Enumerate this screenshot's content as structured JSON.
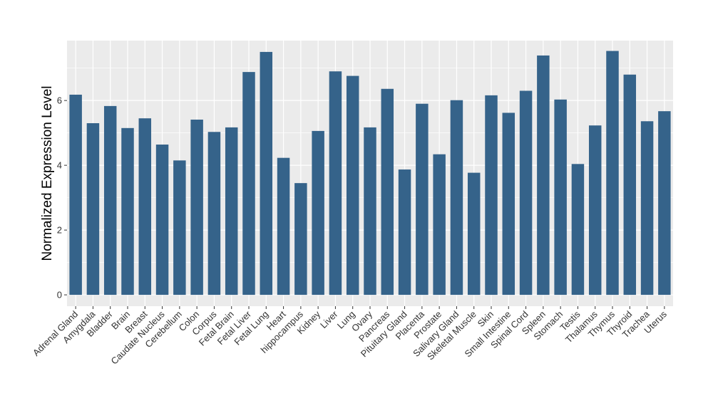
{
  "chart_data": {
    "type": "bar",
    "title": "",
    "xlabel": "",
    "ylabel": "Normalized Expression Level",
    "ylim": [
      -0.35,
      7.85
    ],
    "yticks": [
      0,
      2,
      4,
      6
    ],
    "grid": true,
    "legend": "none",
    "colors": {
      "bar": "#35638a",
      "panel": "#ebebeb",
      "grid": "#ffffff",
      "tick": "#333333"
    },
    "categories": [
      "Adrenal Gland",
      "Amygdala",
      "Bladder",
      "Brain",
      "Breast",
      "Caudate Nucleus",
      "Cerebellum",
      "Colon",
      "Corpus",
      "Fetal Brain",
      "Fetal Liver",
      "Fetal Lung",
      "Heart",
      "hippocampus",
      "Kidney",
      "Liver",
      "Lung",
      "Ovary",
      "Pancreas",
      "Pituitary Gland",
      "Placenta",
      "Prostate",
      "Salivary Gland",
      "Skeletal Muscle",
      "Skin",
      "Small Intestine",
      "Spinal Cord",
      "Spleen",
      "Stomach",
      "Testis",
      "Thalamus",
      "Thymus",
      "Thyroid",
      "Trachea",
      "Uterus"
    ],
    "values": [
      6.18,
      5.3,
      5.83,
      5.15,
      5.45,
      4.64,
      4.15,
      5.41,
      5.03,
      5.17,
      6.88,
      7.5,
      4.23,
      3.45,
      5.06,
      6.9,
      6.76,
      5.17,
      6.36,
      3.87,
      5.9,
      4.34,
      6.01,
      3.77,
      6.16,
      5.62,
      6.3,
      7.39,
      6.03,
      4.04,
      5.23,
      7.53,
      6.8,
      5.36,
      5.67
    ]
  }
}
